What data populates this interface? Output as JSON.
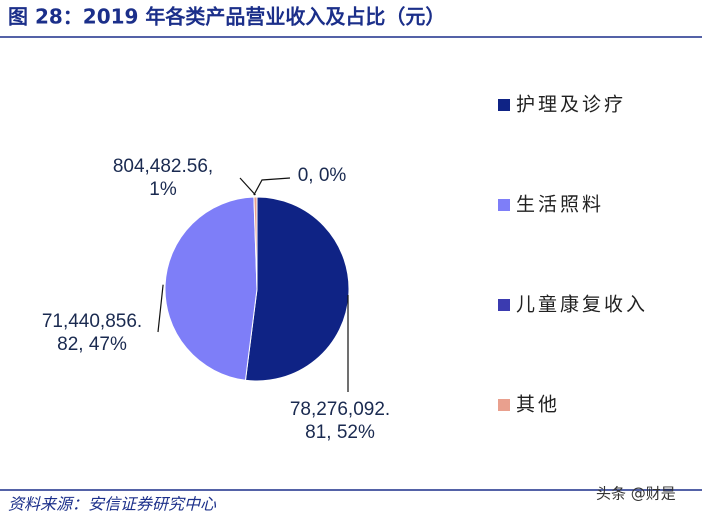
{
  "title": "图 28：2019 年各类产品营业收入及占比（元）",
  "source": "资料来源：安信证券研究中心",
  "watermark": "头条 @财是",
  "chart_data": {
    "type": "pie",
    "categories": [
      "护理及诊疗",
      "生活照料",
      "儿童康复收入",
      "其他"
    ],
    "values": [
      78276092.81,
      71440856.82,
      0,
      804482.56
    ],
    "value_labels": [
      [
        "78,276,092.",
        "81, 52%"
      ],
      [
        "71,440,856.",
        "82, 47%"
      ],
      [
        "0, 0%"
      ],
      [
        "804,482.56,",
        "1%"
      ]
    ],
    "colors": [
      "#0f2385",
      "#7e7ef8",
      "#3b3bb0",
      "#e9a08e"
    ],
    "legend": "right"
  }
}
